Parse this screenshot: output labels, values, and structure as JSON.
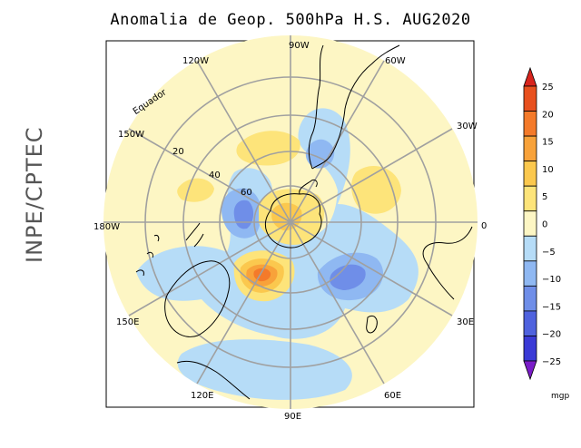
{
  "title": "Anomalia de Geop. 500hPa H.S. AUG2020",
  "side_label": "INPE/CPTEC",
  "longitude_labels": {
    "lon_90w": "90W",
    "lon_120w": "120W",
    "lon_60w": "60W",
    "lon_30w": "30W",
    "lon_150w": "150W",
    "lon_0": "0",
    "lon_180w": "180W",
    "lon_30e": "30E",
    "lon_150e": "150E",
    "lon_60e": "60E",
    "lon_120e": "120E",
    "lon_90e": "90E"
  },
  "latitude_labels": {
    "equador": "Equador",
    "lat_20": "20",
    "lat_40": "40",
    "lat_60": "60"
  },
  "colorbar": {
    "unit": "mgp",
    "ticks": [
      "25",
      "20",
      "15",
      "10",
      "5",
      "0",
      "−5",
      "−10",
      "−15",
      "−20",
      "−25"
    ],
    "colors": [
      "#e8501e",
      "#f47a2a",
      "#f8a23a",
      "#fbc84e",
      "#fde47a",
      "#fdf6c4",
      "#b6dcf7",
      "#8fb8f2",
      "#6f8ee8",
      "#4f62de",
      "#3a3ad6"
    ],
    "end_top_color": "#d8241c",
    "end_bottom_color": "#7a1cc8"
  },
  "map_colors": {
    "background": "#fdf6c4",
    "pos_weak": "#fde47a",
    "pos_mid": "#fbc84e",
    "pos_strong": "#f8a23a",
    "pos_stronger": "#f47a2a",
    "neg_weak": "#b6dcf7",
    "neg_mid": "#8fb8f2",
    "neg_strong": "#6f8ee8",
    "neg_stronger": "#4f62de"
  }
}
